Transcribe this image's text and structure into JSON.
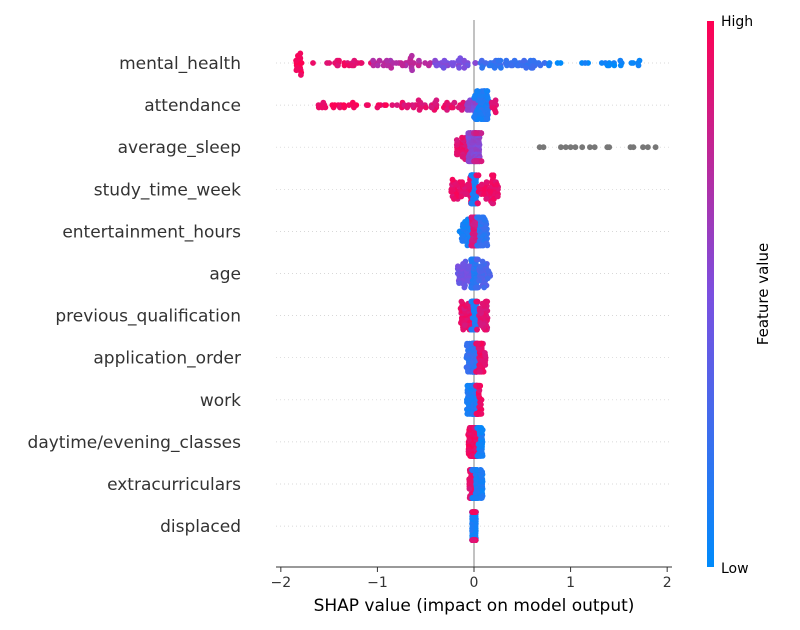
{
  "chart_data": {
    "type": "scatter",
    "subtype": "shap-beeswarm",
    "xlabel": "SHAP value (impact on model output)",
    "xlim": [
      -2.05,
      2.05
    ],
    "xticks": [
      -2,
      -1,
      0,
      1,
      2
    ],
    "xtick_labels": [
      "−2",
      "−1",
      "0",
      "1",
      "2"
    ],
    "grid": false,
    "colorbar": {
      "title": "Feature value",
      "high_label": "High",
      "low_label": "Low",
      "high_color": "#ff0052",
      "low_color": "#008bfb",
      "missing_color": "#777777"
    },
    "features": [
      {
        "name": "mental_health",
        "segments": [
          {
            "range": [
              -1.85,
              -1.78
            ],
            "value": 0.97,
            "weight": 0.1
          },
          {
            "range": [
              -1.68,
              -1.05
            ],
            "value": 0.92,
            "weight": 0.12
          },
          {
            "range": [
              -1.05,
              -0.45
            ],
            "value": 0.72,
            "weight": 0.2
          },
          {
            "range": [
              -0.45,
              0.05
            ],
            "value": 0.5,
            "weight": 0.16
          },
          {
            "range": [
              0.05,
              0.75
            ],
            "value": 0.22,
            "weight": 0.3
          },
          {
            "range": [
              0.75,
              1.72
            ],
            "value": 0.05,
            "weight": 0.12
          }
        ]
      },
      {
        "name": "attendance",
        "segments": [
          {
            "range": [
              -1.62,
              -0.85
            ],
            "value": 0.96,
            "weight": 0.15
          },
          {
            "range": [
              -0.85,
              -0.08
            ],
            "value": 0.9,
            "weight": 0.25
          },
          {
            "range": [
              -0.08,
              0.04
            ],
            "value": 0.55,
            "weight": 0.1
          },
          {
            "range": [
              0.0,
              0.15
            ],
            "value": 0.12,
            "weight": 0.45
          },
          {
            "range": [
              0.18,
              0.27
            ],
            "value": 0.9,
            "weight": 0.05
          }
        ]
      },
      {
        "name": "average_sleep",
        "segments": [
          {
            "range": [
              -0.18,
              -0.05
            ],
            "value": 0.9,
            "weight": 0.2
          },
          {
            "range": [
              -0.06,
              0.06
            ],
            "value": 0.55,
            "weight": 0.6
          },
          {
            "range": [
              0.0,
              0.08
            ],
            "value": 0.8,
            "weight": 0.2
          }
        ],
        "missing": [
          0.68,
          0.72,
          0.9,
          0.95,
          1.0,
          1.05,
          1.12,
          1.2,
          1.25,
          1.38,
          1.4,
          1.62,
          1.65,
          1.75,
          1.8,
          1.88
        ]
      },
      {
        "name": "study_time_week",
        "segments": [
          {
            "range": [
              -0.24,
              -0.02
            ],
            "value": 0.92,
            "weight": 0.3
          },
          {
            "range": [
              -0.03,
              0.03
            ],
            "value": 0.1,
            "weight": 0.4
          },
          {
            "range": [
              0.02,
              0.25
            ],
            "value": 0.92,
            "weight": 0.3
          }
        ]
      },
      {
        "name": "entertainment_hours",
        "segments": [
          {
            "range": [
              -0.15,
              -0.02
            ],
            "value": 0.1,
            "weight": 0.2
          },
          {
            "range": [
              -0.03,
              0.04
            ],
            "value": 0.85,
            "weight": 0.5
          },
          {
            "range": [
              0.03,
              0.14
            ],
            "value": 0.2,
            "weight": 0.3
          }
        ]
      },
      {
        "name": "age",
        "segments": [
          {
            "range": [
              -0.17,
              -0.02
            ],
            "value": 0.45,
            "weight": 0.25
          },
          {
            "range": [
              -0.03,
              0.03
            ],
            "value": 0.15,
            "weight": 0.5
          },
          {
            "range": [
              0.02,
              0.17
            ],
            "value": 0.3,
            "weight": 0.25
          }
        ]
      },
      {
        "name": "previous_qualification",
        "segments": [
          {
            "range": [
              -0.14,
              -0.02
            ],
            "value": 0.9,
            "weight": 0.25
          },
          {
            "range": [
              -0.03,
              0.03
            ],
            "value": 0.1,
            "weight": 0.5
          },
          {
            "range": [
              0.02,
              0.14
            ],
            "value": 0.88,
            "weight": 0.25
          }
        ]
      },
      {
        "name": "application_order",
        "segments": [
          {
            "range": [
              -0.08,
              -0.01
            ],
            "value": 0.2,
            "weight": 0.2
          },
          {
            "range": [
              -0.02,
              0.03
            ],
            "value": 0.2,
            "weight": 0.5
          },
          {
            "range": [
              0.02,
              0.12
            ],
            "value": 0.92,
            "weight": 0.3
          }
        ]
      },
      {
        "name": "work",
        "segments": [
          {
            "range": [
              -0.08,
              -0.01
            ],
            "value": 0.1,
            "weight": 0.2
          },
          {
            "range": [
              -0.02,
              0.03
            ],
            "value": 0.12,
            "weight": 0.5
          },
          {
            "range": [
              0.02,
              0.08
            ],
            "value": 0.94,
            "weight": 0.3
          }
        ]
      },
      {
        "name": "daytime/evening_classes",
        "segments": [
          {
            "range": [
              -0.06,
              0.0
            ],
            "value": 0.94,
            "weight": 0.3
          },
          {
            "range": [
              -0.02,
              0.03
            ],
            "value": 0.92,
            "weight": 0.5
          },
          {
            "range": [
              0.03,
              0.09
            ],
            "value": 0.08,
            "weight": 0.2
          }
        ]
      },
      {
        "name": "extracurriculars",
        "segments": [
          {
            "range": [
              -0.05,
              0.0
            ],
            "value": 0.9,
            "weight": 0.3
          },
          {
            "range": [
              -0.02,
              0.03
            ],
            "value": 0.12,
            "weight": 0.5
          },
          {
            "range": [
              0.03,
              0.09
            ],
            "value": 0.1,
            "weight": 0.2
          }
        ]
      },
      {
        "name": "displaced",
        "segments": [
          {
            "range": [
              -0.02,
              0.02
            ],
            "value": 0.1,
            "weight": 0.8
          },
          {
            "range": [
              -0.02,
              0.02
            ],
            "value": 0.93,
            "weight": 0.2
          }
        ]
      }
    ]
  }
}
